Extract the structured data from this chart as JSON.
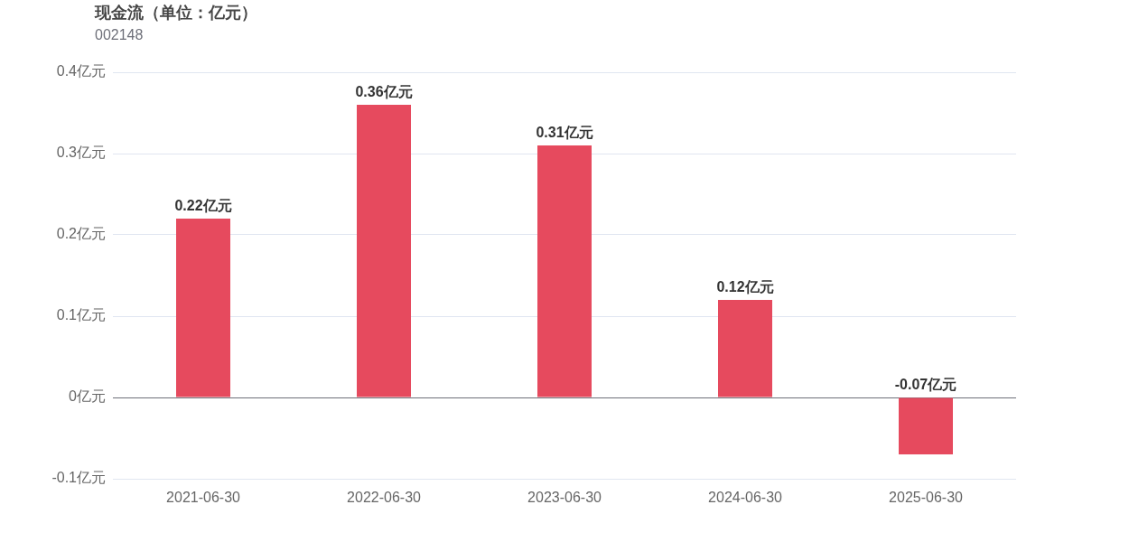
{
  "chart_data": {
    "type": "bar",
    "title": "现金流（单位：亿元）",
    "subtitle": "002148",
    "categories": [
      "2021-06-30",
      "2022-06-30",
      "2023-06-30",
      "2024-06-30",
      "2025-06-30"
    ],
    "values": [
      0.22,
      0.36,
      0.31,
      0.12,
      -0.07
    ],
    "value_labels": [
      "0.22亿元",
      "0.36亿元",
      "0.31亿元",
      "0.12亿元",
      "-0.07亿元"
    ],
    "color": "#e64a5e",
    "ylim": [
      -0.1,
      0.4
    ],
    "yticks": [
      {
        "value": -0.1,
        "label": "-0.1亿元"
      },
      {
        "value": 0,
        "label": "0亿元"
      },
      {
        "value": 0.1,
        "label": "0.1亿元"
      },
      {
        "value": 0.2,
        "label": "0.2亿元"
      },
      {
        "value": 0.3,
        "label": "0.3亿元"
      },
      {
        "value": 0.4,
        "label": "0.4亿元"
      }
    ],
    "grid": "y",
    "legend": false
  }
}
